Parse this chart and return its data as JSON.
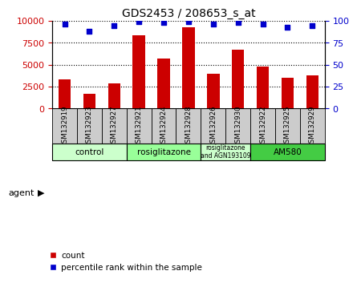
{
  "title": "GDS2453 / 208653_s_at",
  "samples": [
    "GSM132919",
    "GSM132923",
    "GSM132927",
    "GSM132921",
    "GSM132924",
    "GSM132928",
    "GSM132926",
    "GSM132930",
    "GSM132922",
    "GSM132925",
    "GSM132929"
  ],
  "counts": [
    3300,
    1700,
    2900,
    8400,
    5700,
    9300,
    4000,
    6700,
    4800,
    3500,
    3800
  ],
  "percentiles": [
    96,
    88,
    95,
    99,
    98,
    99,
    96,
    98,
    96,
    93,
    95
  ],
  "bar_color": "#cc0000",
  "dot_color": "#0000cc",
  "ylim_left": [
    0,
    10000
  ],
  "ylim_right": [
    0,
    100
  ],
  "yticks_left": [
    0,
    2500,
    5000,
    7500,
    10000
  ],
  "yticks_right": [
    0,
    25,
    50,
    75,
    100
  ],
  "groups": [
    {
      "label": "control",
      "start": 0,
      "end": 3,
      "color": "#ccffcc"
    },
    {
      "label": "rosiglitazone",
      "start": 3,
      "end": 6,
      "color": "#99ff99"
    },
    {
      "label": "rosiglitazone\nand AGN193109",
      "start": 6,
      "end": 8,
      "color": "#ccffcc"
    },
    {
      "label": "AM580",
      "start": 8,
      "end": 11,
      "color": "#44cc44"
    }
  ],
  "agent_label": "agent",
  "legend_count_label": "count",
  "legend_pct_label": "percentile rank within the sample",
  "background_color": "#ffffff",
  "plot_bg_color": "#ffffff",
  "tick_label_color_left": "#cc0000",
  "tick_label_color_right": "#0000cc",
  "grid_color": "#000000",
  "xtick_bg_color": "#cccccc",
  "title_fontsize": 10,
  "bar_width": 0.5
}
